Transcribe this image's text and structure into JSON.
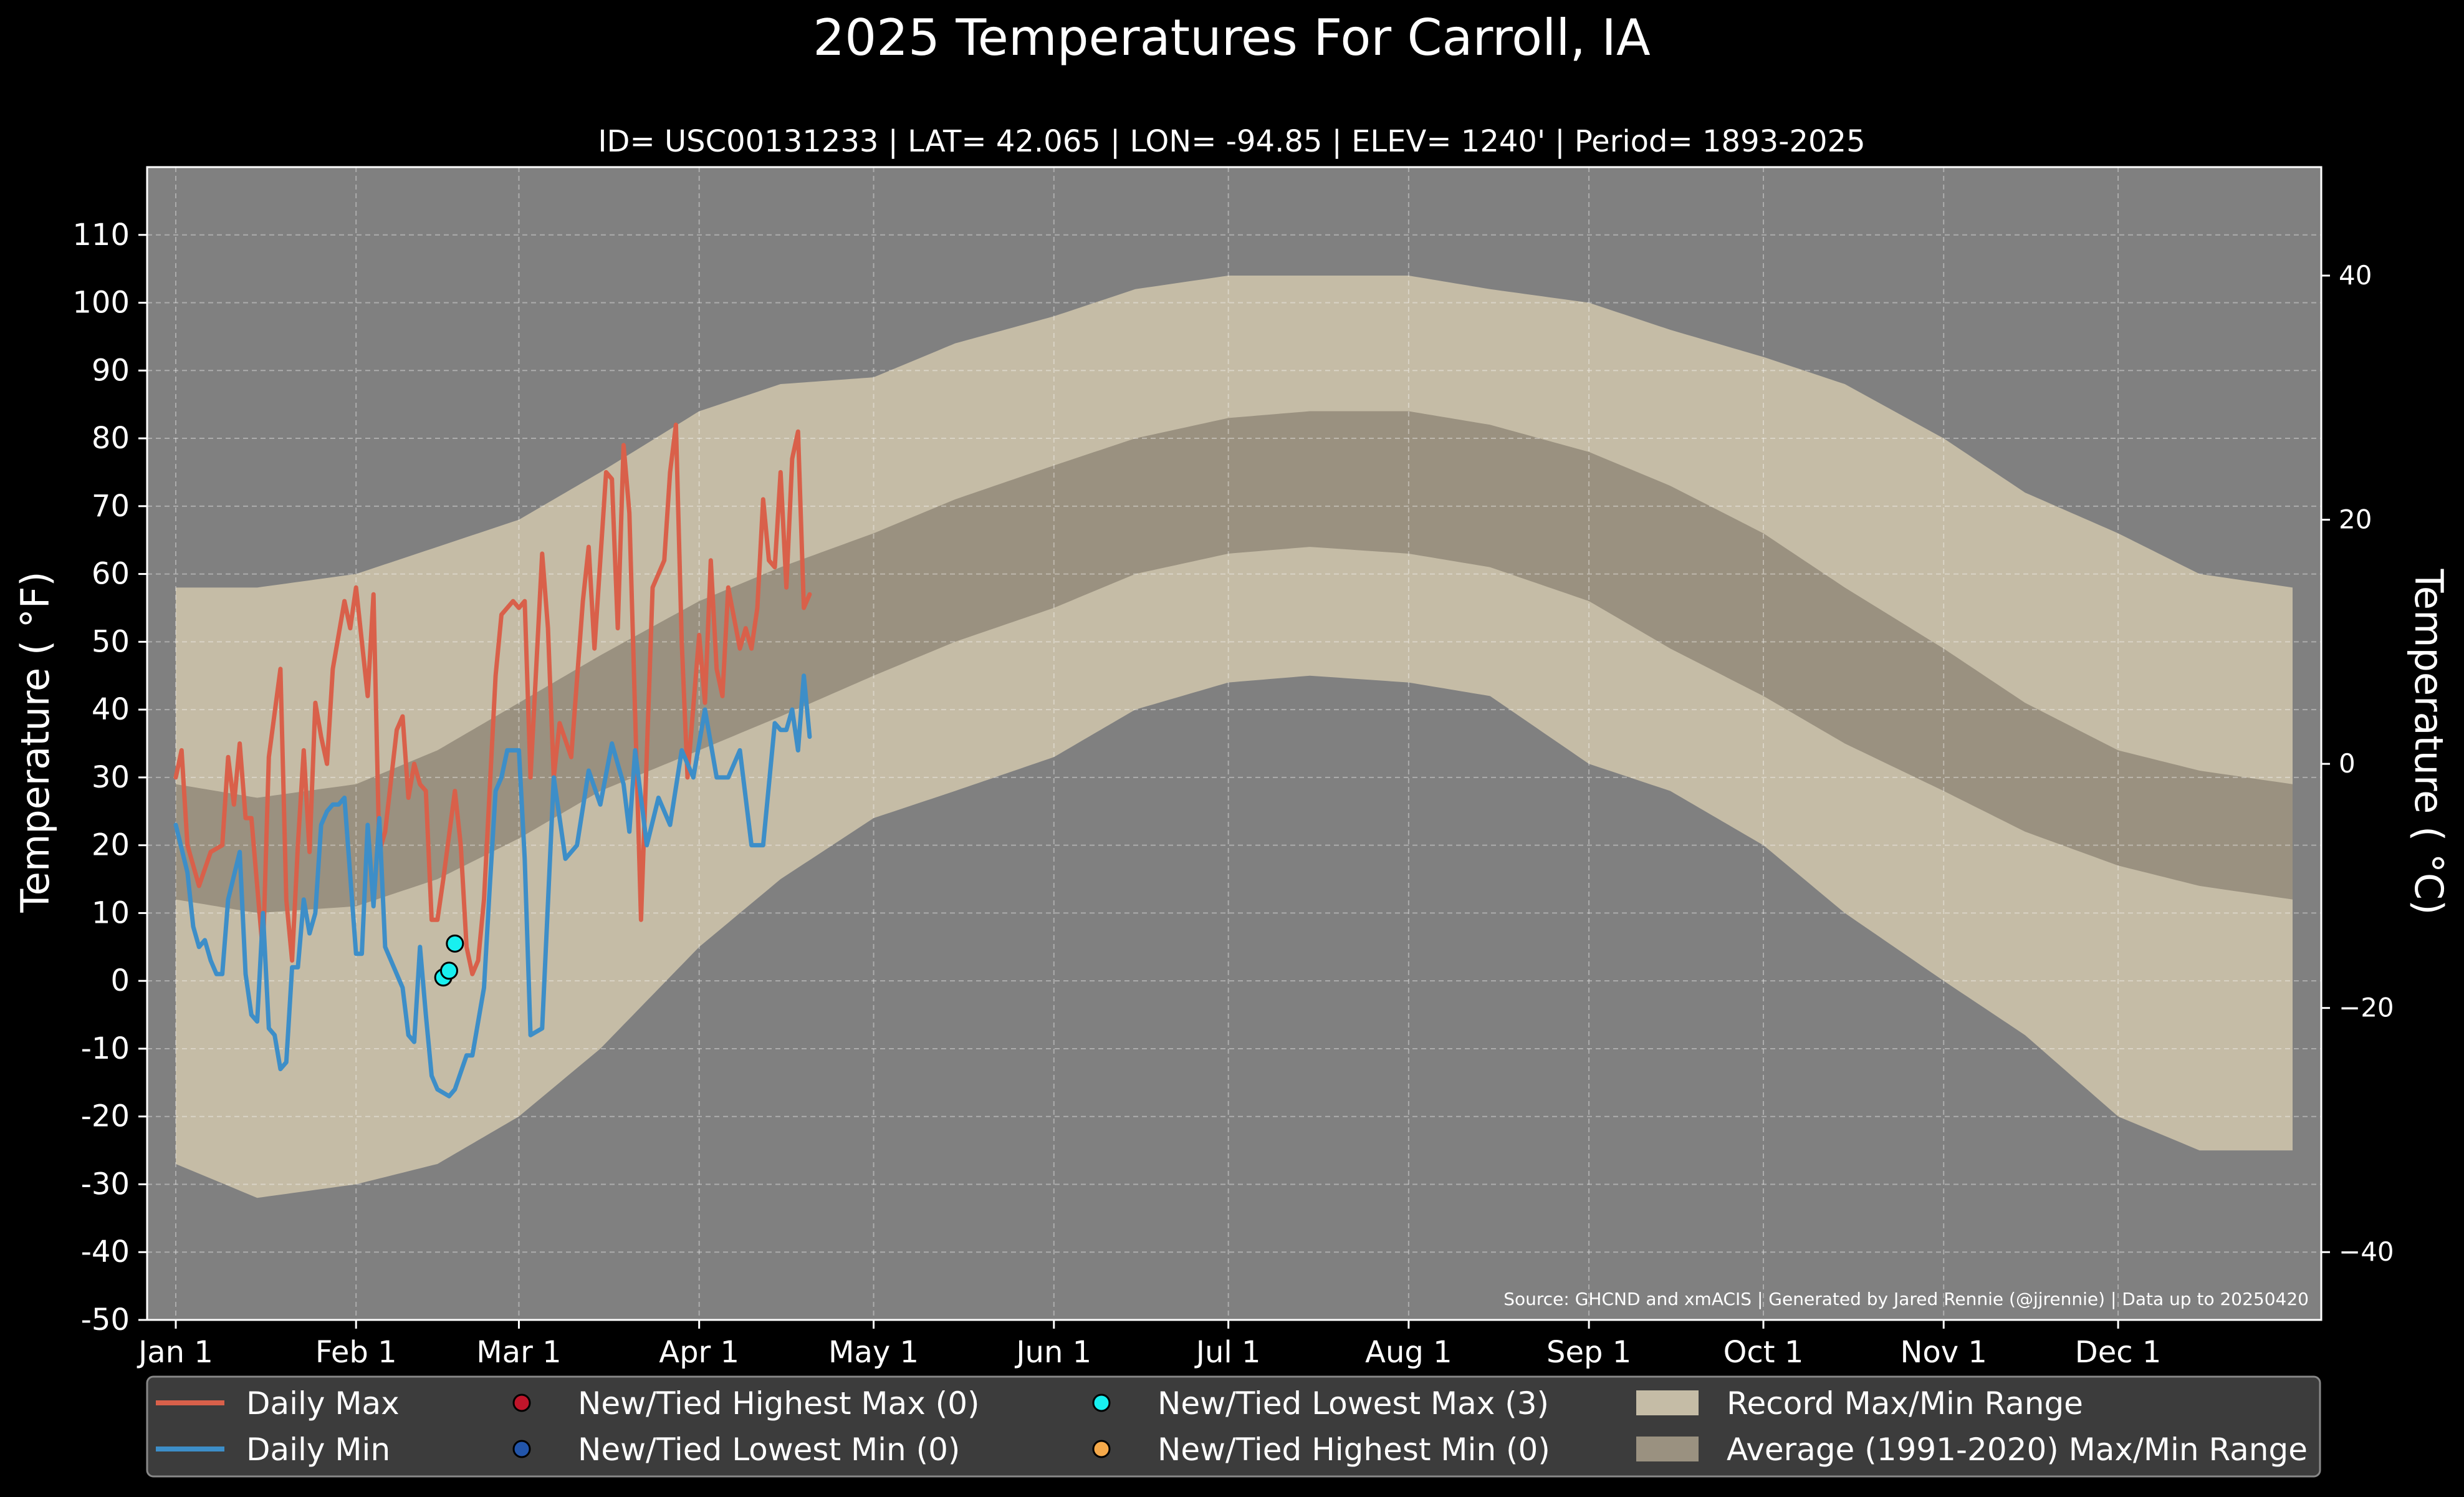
{
  "chart_data": {
    "type": "line",
    "title": "2025 Temperatures For Carroll, IA",
    "subtitle": "ID= USC00131233 | LAT= 42.065 | LON= -94.85 | ELEV= 1240' | Period= 1893-2025",
    "ylabel": "Temperature ( °F)",
    "ylabel_right": "Temperature ( °C)",
    "source": "Source: GHCND and xmACIS | Generated by Jared Rennie (@jjrennie) | Data up to 20250420",
    "xlim": [
      "2025-01-01",
      "2025-12-31"
    ],
    "ylim": [
      -50,
      120
    ],
    "ylim_right_celsius": [
      -45.56,
      48.89
    ],
    "y_ticks": [
      -50,
      -40,
      -30,
      -20,
      -10,
      0,
      10,
      20,
      30,
      40,
      50,
      60,
      70,
      80,
      90,
      100,
      110
    ],
    "y_ticks_right": [
      -40,
      -20,
      0,
      20,
      40
    ],
    "x_ticks": [
      {
        "date": "2025-01-01",
        "label": "Jan 1"
      },
      {
        "date": "2025-02-01",
        "label": "Feb 1"
      },
      {
        "date": "2025-03-01",
        "label": "Mar 1"
      },
      {
        "date": "2025-04-01",
        "label": "Apr 1"
      },
      {
        "date": "2025-05-01",
        "label": "May 1"
      },
      {
        "date": "2025-06-01",
        "label": "Jun 1"
      },
      {
        "date": "2025-07-01",
        "label": "Jul 1"
      },
      {
        "date": "2025-08-01",
        "label": "Aug 1"
      },
      {
        "date": "2025-09-01",
        "label": "Sep 1"
      },
      {
        "date": "2025-10-01",
        "label": "Oct 1"
      },
      {
        "date": "2025-11-01",
        "label": "Nov 1"
      },
      {
        "date": "2025-12-01",
        "label": "Dec 1"
      }
    ],
    "grid": true,
    "legend_position": "bottom",
    "colors": {
      "background": "#808080",
      "record_range": "#c5bca6",
      "average_range": "#9a9180",
      "daily_max": "#d9604a",
      "daily_min": "#3d8ec8",
      "highest_max_marker": "#c0152a",
      "lowest_min_marker": "#2255aa",
      "lowest_max_marker": "#18f0f0",
      "highest_min_marker": "#f5a94a"
    },
    "record_max": {
      "dates": [
        "2025-01-01",
        "2025-01-15",
        "2025-02-01",
        "2025-02-15",
        "2025-03-01",
        "2025-03-15",
        "2025-04-01",
        "2025-04-15",
        "2025-05-01",
        "2025-05-15",
        "2025-06-01",
        "2025-06-15",
        "2025-07-01",
        "2025-07-15",
        "2025-08-01",
        "2025-08-15",
        "2025-09-01",
        "2025-09-15",
        "2025-10-01",
        "2025-10-15",
        "2025-11-01",
        "2025-11-15",
        "2025-12-01",
        "2025-12-15",
        "2025-12-31"
      ],
      "values": [
        58,
        58,
        60,
        64,
        68,
        75,
        84,
        88,
        89,
        94,
        98,
        102,
        104,
        104,
        104,
        102,
        100,
        96,
        92,
        88,
        80,
        72,
        66,
        60,
        58
      ]
    },
    "record_min": {
      "dates": [
        "2025-01-01",
        "2025-01-15",
        "2025-02-01",
        "2025-02-15",
        "2025-03-01",
        "2025-03-15",
        "2025-04-01",
        "2025-04-15",
        "2025-05-01",
        "2025-05-15",
        "2025-06-01",
        "2025-06-15",
        "2025-07-01",
        "2025-07-15",
        "2025-08-01",
        "2025-08-15",
        "2025-09-01",
        "2025-09-15",
        "2025-10-01",
        "2025-10-15",
        "2025-11-01",
        "2025-11-15",
        "2025-12-01",
        "2025-12-15",
        "2025-12-31"
      ],
      "values": [
        -27,
        -32,
        -30,
        -27,
        -20,
        -10,
        5,
        15,
        24,
        28,
        33,
        40,
        44,
        45,
        44,
        42,
        32,
        28,
        20,
        10,
        0,
        -8,
        -20,
        -25,
        -25
      ]
    },
    "average_max": {
      "dates": [
        "2025-01-01",
        "2025-01-15",
        "2025-02-01",
        "2025-02-15",
        "2025-03-01",
        "2025-03-15",
        "2025-04-01",
        "2025-04-15",
        "2025-05-01",
        "2025-05-15",
        "2025-06-01",
        "2025-06-15",
        "2025-07-01",
        "2025-07-15",
        "2025-08-01",
        "2025-08-15",
        "2025-09-01",
        "2025-09-15",
        "2025-10-01",
        "2025-10-15",
        "2025-11-01",
        "2025-11-15",
        "2025-12-01",
        "2025-12-15",
        "2025-12-31"
      ],
      "values": [
        29,
        27,
        29,
        34,
        41,
        48,
        56,
        61,
        66,
        71,
        76,
        80,
        83,
        84,
        84,
        82,
        78,
        73,
        66,
        58,
        49,
        41,
        34,
        31,
        29
      ]
    },
    "average_min": {
      "dates": [
        "2025-01-01",
        "2025-01-15",
        "2025-02-01",
        "2025-02-15",
        "2025-03-01",
        "2025-03-15",
        "2025-04-01",
        "2025-04-15",
        "2025-05-01",
        "2025-05-15",
        "2025-06-01",
        "2025-06-15",
        "2025-07-01",
        "2025-07-15",
        "2025-08-01",
        "2025-08-15",
        "2025-09-01",
        "2025-09-15",
        "2025-10-01",
        "2025-10-15",
        "2025-11-01",
        "2025-11-15",
        "2025-12-01",
        "2025-12-15",
        "2025-12-31"
      ],
      "values": [
        12,
        10,
        11,
        15,
        21,
        28,
        34,
        39,
        45,
        50,
        55,
        60,
        63,
        64,
        63,
        61,
        56,
        49,
        42,
        35,
        28,
        22,
        17,
        14,
        12
      ]
    },
    "series": [
      {
        "name": "Daily Max",
        "dates": [
          "2025-01-01",
          "2025-01-02",
          "2025-01-03",
          "2025-01-05",
          "2025-01-07",
          "2025-01-09",
          "2025-01-10",
          "2025-01-11",
          "2025-01-12",
          "2025-01-13",
          "2025-01-14",
          "2025-01-16",
          "2025-01-17",
          "2025-01-19",
          "2025-01-20",
          "2025-01-21",
          "2025-01-22",
          "2025-01-23",
          "2025-01-24",
          "2025-01-25",
          "2025-01-26",
          "2025-01-27",
          "2025-01-28",
          "2025-01-30",
          "2025-01-31",
          "2025-02-01",
          "2025-02-03",
          "2025-02-04",
          "2025-02-05",
          "2025-02-06",
          "2025-02-08",
          "2025-02-09",
          "2025-02-10",
          "2025-02-11",
          "2025-02-12",
          "2025-02-13",
          "2025-02-14",
          "2025-02-15",
          "2025-02-16",
          "2025-02-18",
          "2025-02-19",
          "2025-02-20",
          "2025-02-21",
          "2025-02-22",
          "2025-02-23",
          "2025-02-25",
          "2025-02-26",
          "2025-02-28",
          "2025-03-01",
          "2025-03-02",
          "2025-03-03",
          "2025-03-05",
          "2025-03-06",
          "2025-03-07",
          "2025-03-08",
          "2025-03-10",
          "2025-03-12",
          "2025-03-13",
          "2025-03-14",
          "2025-03-16",
          "2025-03-17",
          "2025-03-18",
          "2025-03-19",
          "2025-03-20",
          "2025-03-22",
          "2025-03-24",
          "2025-03-26",
          "2025-03-27",
          "2025-03-28",
          "2025-03-29",
          "2025-03-30",
          "2025-04-01",
          "2025-04-02",
          "2025-04-03",
          "2025-04-04",
          "2025-04-05",
          "2025-04-06",
          "2025-04-08",
          "2025-04-09",
          "2025-04-10",
          "2025-04-11",
          "2025-04-12",
          "2025-04-13",
          "2025-04-14",
          "2025-04-15",
          "2025-04-16",
          "2025-04-17",
          "2025-04-18",
          "2025-04-19",
          "2025-04-20"
        ],
        "values": [
          30,
          34,
          20,
          14,
          19,
          20,
          33,
          26,
          35,
          24,
          24,
          4,
          33,
          46,
          12,
          3,
          20,
          34,
          19,
          41,
          36,
          32,
          46,
          56,
          52,
          58,
          42,
          57,
          19,
          22,
          37,
          39,
          27,
          32,
          29,
          28,
          9,
          9,
          15,
          28,
          20,
          5,
          1,
          3,
          12,
          45,
          54,
          56,
          55,
          56,
          30,
          63,
          52,
          30,
          38,
          33,
          56,
          64,
          49,
          75,
          74,
          52,
          79,
          69,
          9,
          58,
          62,
          75,
          82,
          50,
          30,
          51,
          41,
          62,
          46,
          42,
          58,
          49,
          52,
          49,
          55,
          71,
          62,
          61,
          75,
          58,
          77,
          81,
          55,
          57
        ]
      },
      {
        "name": "Daily Min",
        "dates": [
          "2025-01-01",
          "2025-01-03",
          "2025-01-04",
          "2025-01-05",
          "2025-01-06",
          "2025-01-07",
          "2025-01-08",
          "2025-01-09",
          "2025-01-10",
          "2025-01-12",
          "2025-01-13",
          "2025-01-14",
          "2025-01-15",
          "2025-01-16",
          "2025-01-17",
          "2025-01-18",
          "2025-01-19",
          "2025-01-20",
          "2025-01-21",
          "2025-01-22",
          "2025-01-23",
          "2025-01-24",
          "2025-01-25",
          "2025-01-26",
          "2025-01-27",
          "2025-01-28",
          "2025-01-29",
          "2025-01-30",
          "2025-02-01",
          "2025-02-02",
          "2025-02-03",
          "2025-02-04",
          "2025-02-05",
          "2025-02-06",
          "2025-02-07",
          "2025-02-08",
          "2025-02-09",
          "2025-02-10",
          "2025-02-11",
          "2025-02-12",
          "2025-02-13",
          "2025-02-14",
          "2025-02-15",
          "2025-02-17",
          "2025-02-18",
          "2025-02-20",
          "2025-02-21",
          "2025-02-23",
          "2025-02-24",
          "2025-02-25",
          "2025-02-26",
          "2025-02-27",
          "2025-02-28",
          "2025-03-01",
          "2025-03-02",
          "2025-03-03",
          "2025-03-05",
          "2025-03-07",
          "2025-03-09",
          "2025-03-11",
          "2025-03-13",
          "2025-03-15",
          "2025-03-17",
          "2025-03-19",
          "2025-03-20",
          "2025-03-21",
          "2025-03-23",
          "2025-03-25",
          "2025-03-27",
          "2025-03-29",
          "2025-03-31",
          "2025-04-02",
          "2025-04-04",
          "2025-04-06",
          "2025-04-08",
          "2025-04-10",
          "2025-04-12",
          "2025-04-14",
          "2025-04-15",
          "2025-04-16",
          "2025-04-17",
          "2025-04-18",
          "2025-04-19",
          "2025-04-20"
        ],
        "values": [
          23,
          16,
          8,
          5,
          6,
          3,
          1,
          1,
          12,
          19,
          1,
          -5,
          -6,
          10,
          -7,
          -8,
          -13,
          -12,
          2,
          2,
          12,
          7,
          10,
          23,
          25,
          26,
          26,
          27,
          4,
          4,
          23,
          11,
          24,
          5,
          3,
          1,
          -1,
          -8,
          -9,
          5,
          -5,
          -14,
          -16,
          -17,
          -16,
          -11,
          -11,
          -1,
          14,
          28,
          30,
          34,
          34,
          34,
          18,
          -8,
          -7,
          30,
          18,
          20,
          31,
          26,
          35,
          29,
          22,
          34,
          20,
          27,
          23,
          34,
          30,
          40,
          30,
          30,
          34,
          20,
          20,
          38,
          37,
          37,
          40,
          34,
          45,
          36
        ]
      }
    ],
    "records": [
      {
        "type": "New/Tied Lowest Max",
        "date": "2025-02-16",
        "value": 0.5
      },
      {
        "type": "New/Tied Lowest Max",
        "date": "2025-02-17",
        "value": 1.5
      },
      {
        "type": "New/Tied Lowest Max",
        "date": "2025-02-18",
        "value": 5.5
      }
    ],
    "legend": [
      {
        "label": "Daily Max",
        "kind": "line",
        "color": "#d9604a"
      },
      {
        "label": "Daily Min",
        "kind": "line",
        "color": "#3d8ec8"
      },
      {
        "label": "New/Tied Highest Max (0)",
        "kind": "marker",
        "color": "#c0152a"
      },
      {
        "label": "New/Tied Lowest Min (0)",
        "kind": "marker",
        "color": "#2255aa"
      },
      {
        "label": "New/Tied Lowest Max (3)",
        "kind": "marker",
        "color": "#18f0f0"
      },
      {
        "label": "New/Tied Highest Min (0)",
        "kind": "marker",
        "color": "#f5a94a"
      },
      {
        "label": "Record Max/Min Range",
        "kind": "patch",
        "color": "#c5bca6"
      },
      {
        "label": "Average (1991-2020) Max/Min Range",
        "kind": "patch",
        "color": "#9a9180"
      }
    ]
  }
}
